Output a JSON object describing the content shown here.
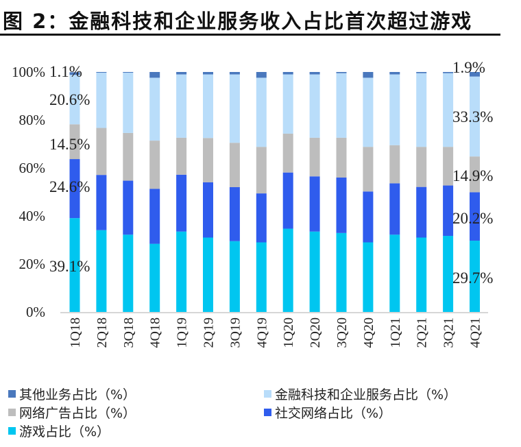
{
  "title": "图 2：金融科技和企业服务收入占比首次超过游戏",
  "chart_data": {
    "type": "bar",
    "stacked": true,
    "title": "图 2：金融科技和企业服务收入占比首次超过游戏",
    "xlabel": "",
    "ylabel": "",
    "ylim": [
      0,
      100
    ],
    "yticks": [
      "0%",
      "20%",
      "40%",
      "60%",
      "80%",
      "100%"
    ],
    "grid": false,
    "legend_position": "bottom",
    "categories": [
      "1Q18",
      "2Q18",
      "3Q18",
      "4Q18",
      "1Q19",
      "2Q19",
      "3Q19",
      "4Q19",
      "1Q20",
      "2Q20",
      "3Q20",
      "4Q20",
      "1Q21",
      "2Q21",
      "3Q21",
      "4Q21"
    ],
    "series": [
      {
        "name": "游戏占比（%）",
        "color": "#00c6f0",
        "values": [
          39.1,
          34.1,
          32.2,
          28.4,
          33.5,
          31.0,
          29.5,
          29.0,
          34.7,
          33.5,
          32.9,
          29.0,
          32.2,
          31.0,
          31.7,
          29.7
        ]
      },
      {
        "name": "社交网络占比（%）",
        "color": "#2f5ced",
        "values": [
          24.6,
          23.0,
          22.5,
          22.9,
          23.7,
          23.0,
          22.5,
          20.4,
          23.4,
          23.0,
          23.1,
          21.2,
          21.4,
          21.1,
          21.0,
          20.2
        ]
      },
      {
        "name": "网络广告占比（%）",
        "color": "#bdbdbd",
        "values": [
          14.5,
          19.6,
          19.9,
          20.1,
          15.4,
          18.5,
          18.5,
          19.4,
          16.2,
          16.1,
          16.6,
          18.6,
          15.9,
          16.7,
          16.1,
          14.9
        ]
      },
      {
        "name": "金融科技和企业服务占比（%）",
        "color": "#b9ddfa",
        "values": [
          20.6,
          23.0,
          25.1,
          26.2,
          26.4,
          26.5,
          28.5,
          28.8,
          24.7,
          26.4,
          26.9,
          28.8,
          29.5,
          30.7,
          30.7,
          33.3
        ]
      },
      {
        "name": "其他业务占比（%）",
        "color": "#4a78bd",
        "values": [
          1.1,
          0.3,
          0.3,
          2.4,
          1.0,
          1.0,
          1.0,
          2.4,
          1.0,
          1.0,
          0.5,
          2.4,
          1.0,
          0.5,
          0.5,
          1.9
        ]
      }
    ],
    "data_labels": {
      "1Q18": [
        "39.1%",
        "24.6%",
        "14.5%",
        "20.6%",
        "1.1%"
      ],
      "4Q21": [
        "29.7%",
        "20.2%",
        "14.9%",
        "33.3%",
        "1.9%"
      ]
    }
  },
  "legend": [
    {
      "label": "其他业务占比（%）",
      "color": "#4a78bd"
    },
    {
      "label": "金融科技和企业服务占比（%）",
      "color": "#b9ddfa"
    },
    {
      "label": "网络广告占比（%）",
      "color": "#bdbdbd"
    },
    {
      "label": "社交网络占比（%）",
      "color": "#2f5ced"
    },
    {
      "label": "游戏占比（%）",
      "color": "#00c6f0"
    }
  ]
}
